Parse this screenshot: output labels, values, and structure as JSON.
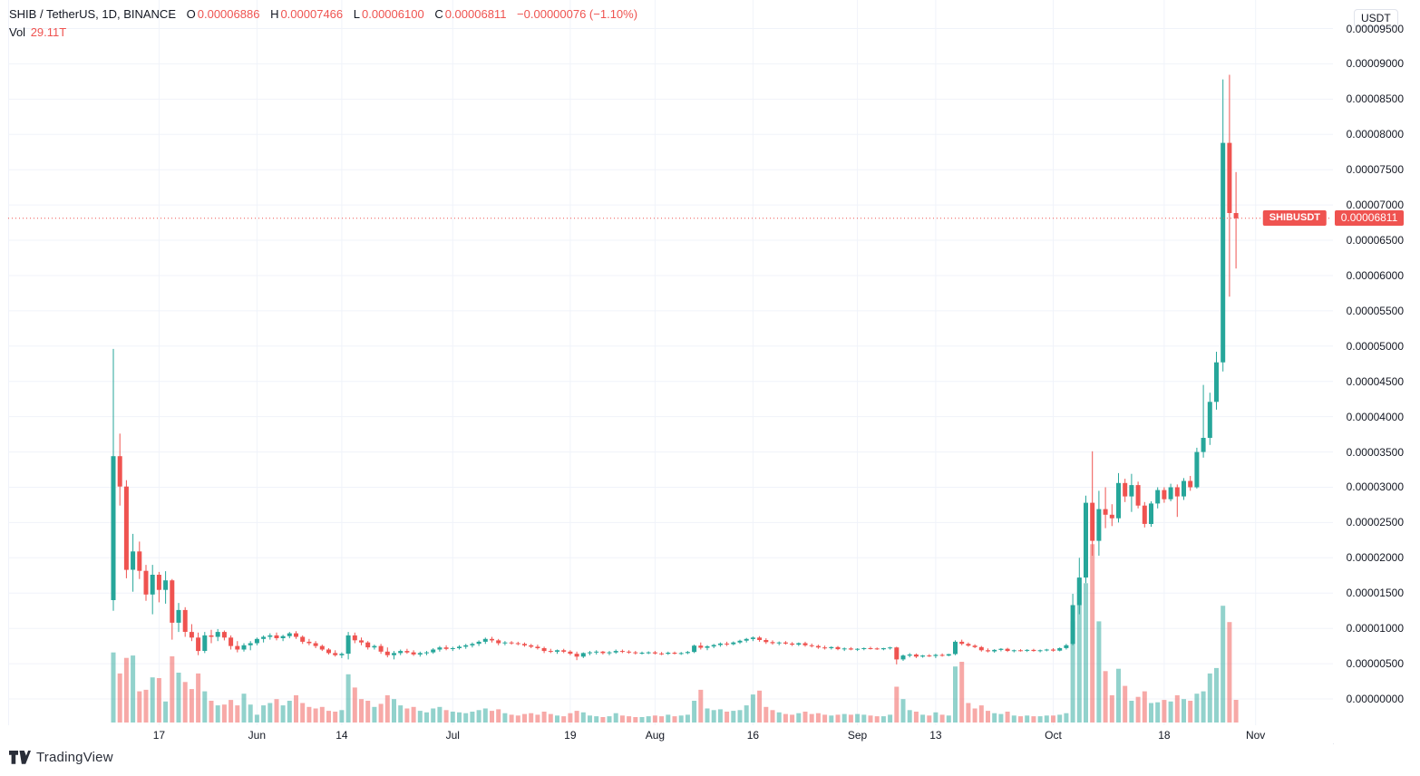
{
  "header": {
    "symbol": "SHIB / TetherUS, 1D, BINANCE",
    "open_label": "O",
    "open": "0.00006886",
    "high_label": "H",
    "high": "0.00007466",
    "low_label": "L",
    "low": "0.00006100",
    "close_label": "C",
    "close": "0.00006811",
    "change": "−0.00000076 (−1.10%)",
    "vol_label": "Vol",
    "vol_value": "29.11T"
  },
  "price_axis": {
    "currency_button": "USDT"
  },
  "price_line": {
    "tag": "SHIBUSDT",
    "label": "0.00006811",
    "value": 6811
  },
  "footer": {
    "logo_text": "TradingView"
  },
  "colors": {
    "up": "#26a69a",
    "down": "#ef5350",
    "vol_up": "rgba(38,166,154,0.5)",
    "vol_down": "rgba(239,83,80,0.5)",
    "grid": "#f0f3fa",
    "separator": "#e0e3eb",
    "text": "#131722",
    "accent": "#ef5350"
  },
  "chart_data": {
    "type": "candlestick",
    "title": "SHIB / TetherUS, 1D, BINANCE",
    "price_multiplier": 1e-08,
    "legend_note": "candles = [open, high, low, close, volume_T] in 1e-8 USDT units, daily from first visible bar",
    "y_ticks": [
      0,
      500,
      1000,
      1500,
      2000,
      2500,
      3000,
      3500,
      4000,
      4500,
      5000,
      5500,
      6000,
      6500,
      7000,
      7500,
      8000,
      8500,
      9000,
      9500
    ],
    "x_ticks": [
      {
        "label": "17",
        "day": 7
      },
      {
        "label": "Jun",
        "day": 22
      },
      {
        "label": "14",
        "day": 35
      },
      {
        "label": "Jul",
        "day": 52
      },
      {
        "label": "19",
        "day": 70
      },
      {
        "label": "Aug",
        "day": 83
      },
      {
        "label": "16",
        "day": 98
      },
      {
        "label": "Sep",
        "day": 114
      },
      {
        "label": "13",
        "day": 126
      },
      {
        "label": "Oct",
        "day": 144
      },
      {
        "label": "18",
        "day": 161
      },
      {
        "label": "Nov",
        "day": 175
      }
    ],
    "candles": [
      [
        1400,
        4960,
        1250,
        3440,
        90
      ],
      [
        3440,
        3760,
        2740,
        3010,
        63
      ],
      [
        3010,
        3100,
        1710,
        1830,
        83
      ],
      [
        1830,
        2340,
        1520,
        2090,
        86
      ],
      [
        2090,
        2230,
        1700,
        1815,
        40
      ],
      [
        1815,
        1900,
        1390,
        1480,
        42
      ],
      [
        1480,
        1900,
        1200,
        1760,
        58
      ],
      [
        1760,
        1800,
        1370,
        1545,
        57
      ],
      [
        1545,
        1810,
        1350,
        1680,
        27
      ],
      [
        1680,
        1700,
        840,
        1080,
        85
      ],
      [
        1080,
        1360,
        950,
        1260,
        64
      ],
      [
        1260,
        1300,
        880,
        950,
        52
      ],
      [
        950,
        1060,
        820,
        870,
        43
      ],
      [
        870,
        940,
        620,
        680,
        63
      ],
      [
        680,
        950,
        650,
        900,
        40
      ],
      [
        900,
        980,
        790,
        880,
        28
      ],
      [
        880,
        990,
        820,
        950,
        22
      ],
      [
        950,
        970,
        830,
        870,
        23
      ],
      [
        870,
        900,
        700,
        750,
        29
      ],
      [
        750,
        820,
        660,
        700,
        22
      ],
      [
        700,
        790,
        670,
        760,
        37
      ],
      [
        760,
        820,
        690,
        790,
        23
      ],
      [
        790,
        870,
        760,
        850,
        10
      ],
      [
        850,
        900,
        800,
        880,
        22
      ],
      [
        880,
        930,
        840,
        900,
        25
      ],
      [
        900,
        940,
        830,
        860,
        30
      ],
      [
        860,
        910,
        820,
        890,
        22
      ],
      [
        890,
        950,
        860,
        930,
        28
      ],
      [
        930,
        960,
        850,
        880,
        35
      ],
      [
        880,
        900,
        780,
        810,
        25
      ],
      [
        810,
        850,
        760,
        790,
        20
      ],
      [
        790,
        820,
        720,
        750,
        18
      ],
      [
        750,
        770,
        680,
        700,
        20
      ],
      [
        700,
        720,
        630,
        650,
        15
      ],
      [
        650,
        690,
        600,
        620,
        14
      ],
      [
        620,
        660,
        580,
        640,
        16
      ],
      [
        640,
        950,
        560,
        900,
        62
      ],
      [
        900,
        940,
        790,
        830,
        45
      ],
      [
        830,
        870,
        760,
        800,
        30
      ],
      [
        800,
        820,
        700,
        730,
        28
      ],
      [
        730,
        770,
        700,
        750,
        20
      ],
      [
        750,
        780,
        640,
        670,
        24
      ],
      [
        670,
        730,
        590,
        620,
        35
      ],
      [
        620,
        680,
        560,
        650,
        30
      ],
      [
        650,
        700,
        620,
        680,
        22
      ],
      [
        680,
        710,
        640,
        660,
        18
      ],
      [
        660,
        690,
        610,
        630,
        20
      ],
      [
        630,
        670,
        600,
        650,
        15
      ],
      [
        650,
        680,
        620,
        660,
        13
      ],
      [
        660,
        720,
        640,
        700,
        18
      ],
      [
        700,
        750,
        670,
        730,
        20
      ],
      [
        730,
        760,
        690,
        710,
        16
      ],
      [
        710,
        740,
        680,
        720,
        14
      ],
      [
        720,
        760,
        700,
        740,
        13
      ],
      [
        740,
        780,
        710,
        760,
        12
      ],
      [
        760,
        800,
        730,
        780,
        14
      ],
      [
        780,
        830,
        750,
        810,
        16
      ],
      [
        810,
        870,
        780,
        850,
        18
      ],
      [
        850,
        880,
        800,
        830,
        15
      ],
      [
        830,
        850,
        760,
        790,
        17
      ],
      [
        790,
        820,
        760,
        800,
        12
      ],
      [
        800,
        820,
        770,
        790,
        10
      ],
      [
        790,
        810,
        760,
        780,
        9
      ],
      [
        780,
        800,
        740,
        760,
        11
      ],
      [
        760,
        780,
        720,
        740,
        12
      ],
      [
        740,
        770,
        700,
        720,
        10
      ],
      [
        720,
        740,
        650,
        680,
        14
      ],
      [
        680,
        710,
        650,
        670,
        11
      ],
      [
        670,
        700,
        640,
        690,
        9
      ],
      [
        690,
        710,
        650,
        670,
        8
      ],
      [
        670,
        690,
        620,
        640,
        12
      ],
      [
        640,
        670,
        550,
        600,
        15
      ],
      [
        600,
        660,
        580,
        650,
        13
      ],
      [
        650,
        680,
        620,
        660,
        9
      ],
      [
        660,
        690,
        630,
        670,
        8
      ],
      [
        670,
        680,
        630,
        650,
        7
      ],
      [
        650,
        680,
        620,
        660,
        8
      ],
      [
        660,
        700,
        640,
        680,
        12
      ],
      [
        680,
        700,
        650,
        670,
        9
      ],
      [
        670,
        690,
        640,
        660,
        8
      ],
      [
        660,
        680,
        630,
        650,
        7
      ],
      [
        650,
        670,
        630,
        655,
        7
      ],
      [
        655,
        675,
        635,
        660,
        8
      ],
      [
        660,
        680,
        630,
        645,
        9
      ],
      [
        645,
        665,
        620,
        640,
        8
      ],
      [
        640,
        670,
        625,
        655,
        10
      ],
      [
        655,
        670,
        630,
        645,
        8
      ],
      [
        645,
        665,
        625,
        650,
        9
      ],
      [
        650,
        680,
        635,
        665,
        10
      ],
      [
        665,
        770,
        650,
        755,
        28
      ],
      [
        755,
        800,
        700,
        725,
        42
      ],
      [
        725,
        760,
        690,
        745,
        18
      ],
      [
        745,
        780,
        720,
        765,
        16
      ],
      [
        765,
        800,
        740,
        785,
        17
      ],
      [
        785,
        810,
        750,
        775,
        14
      ],
      [
        775,
        815,
        760,
        800,
        15
      ],
      [
        800,
        840,
        780,
        825,
        16
      ],
      [
        825,
        865,
        800,
        850,
        22
      ],
      [
        850,
        885,
        820,
        870,
        36
      ],
      [
        870,
        890,
        810,
        835,
        41
      ],
      [
        835,
        860,
        780,
        805,
        20
      ],
      [
        805,
        830,
        770,
        790,
        16
      ],
      [
        790,
        815,
        760,
        800,
        13
      ],
      [
        800,
        820,
        770,
        785,
        11
      ],
      [
        785,
        805,
        750,
        770,
        10
      ],
      [
        770,
        800,
        750,
        790,
        12
      ],
      [
        790,
        810,
        740,
        760,
        14
      ],
      [
        760,
        785,
        730,
        750,
        11
      ],
      [
        750,
        770,
        710,
        730,
        12
      ],
      [
        730,
        755,
        700,
        720,
        10
      ],
      [
        720,
        745,
        700,
        735,
        9
      ],
      [
        735,
        750,
        690,
        705,
        10
      ],
      [
        705,
        730,
        680,
        715,
        11
      ],
      [
        715,
        735,
        690,
        700,
        10
      ],
      [
        700,
        720,
        680,
        710,
        11
      ],
      [
        710,
        730,
        690,
        720,
        10
      ],
      [
        720,
        740,
        700,
        715,
        9
      ],
      [
        715,
        730,
        695,
        705,
        8
      ],
      [
        705,
        725,
        690,
        720,
        8
      ],
      [
        720,
        740,
        700,
        730,
        10
      ],
      [
        730,
        740,
        490,
        560,
        46
      ],
      [
        560,
        630,
        540,
        615,
        30
      ],
      [
        615,
        650,
        590,
        630,
        16
      ],
      [
        630,
        645,
        580,
        600,
        14
      ],
      [
        600,
        625,
        585,
        615,
        10
      ],
      [
        615,
        635,
        595,
        610,
        9
      ],
      [
        610,
        640,
        580,
        625,
        13
      ],
      [
        625,
        645,
        600,
        615,
        10
      ],
      [
        615,
        640,
        605,
        635,
        9
      ],
      [
        635,
        830,
        620,
        810,
        72
      ],
      [
        810,
        840,
        760,
        780,
        78
      ],
      [
        780,
        800,
        740,
        755,
        25
      ],
      [
        755,
        775,
        720,
        735,
        18
      ],
      [
        735,
        750,
        670,
        690,
        22
      ],
      [
        690,
        715,
        660,
        675,
        15
      ],
      [
        675,
        705,
        655,
        695,
        12
      ],
      [
        695,
        720,
        675,
        710,
        11
      ],
      [
        710,
        725,
        665,
        680,
        14
      ],
      [
        680,
        700,
        660,
        690,
        9
      ],
      [
        690,
        705,
        670,
        685,
        8
      ],
      [
        685,
        705,
        665,
        695,
        9
      ],
      [
        695,
        710,
        670,
        680,
        8
      ],
      [
        680,
        700,
        660,
        690,
        8
      ],
      [
        690,
        710,
        675,
        700,
        9
      ],
      [
        700,
        720,
        670,
        685,
        9
      ],
      [
        685,
        730,
        675,
        720,
        10
      ],
      [
        720,
        780,
        700,
        760,
        12
      ],
      [
        780,
        1490,
        760,
        1330,
        130
      ],
      [
        1330,
        2000,
        1200,
        1720,
        185
      ],
      [
        1720,
        2880,
        1640,
        2780,
        179
      ],
      [
        2780,
        3510,
        2030,
        2240,
        229
      ],
      [
        2240,
        2950,
        2030,
        2690,
        130
      ],
      [
        2690,
        3000,
        2420,
        2610,
        66
      ],
      [
        2610,
        2760,
        2450,
        2560,
        35
      ],
      [
        2560,
        3200,
        2500,
        3060,
        69
      ],
      [
        3060,
        3120,
        2790,
        2870,
        47
      ],
      [
        2870,
        3190,
        2650,
        3030,
        28
      ],
      [
        3030,
        3080,
        2700,
        2740,
        33
      ],
      [
        2740,
        2790,
        2430,
        2480,
        40
      ],
      [
        2480,
        2800,
        2440,
        2770,
        25
      ],
      [
        2770,
        3000,
        2700,
        2960,
        26
      ],
      [
        2960,
        3000,
        2780,
        2830,
        29
      ],
      [
        2830,
        3050,
        2800,
        3000,
        27
      ],
      [
        3000,
        3040,
        2580,
        2870,
        35
      ],
      [
        2870,
        3130,
        2820,
        3090,
        30
      ],
      [
        3090,
        3160,
        2950,
        3000,
        28
      ],
      [
        3000,
        3560,
        2980,
        3500,
        37
      ],
      [
        3500,
        4450,
        3420,
        3700,
        40
      ],
      [
        3700,
        4340,
        3600,
        4210,
        63
      ],
      [
        4210,
        4920,
        4100,
        4770,
        70
      ],
      [
        4770,
        8780,
        4640,
        7880,
        150
      ],
      [
        7880,
        8845,
        5700,
        6886,
        129
      ],
      [
        6886,
        7466,
        6100,
        6811,
        29.11
      ]
    ]
  }
}
